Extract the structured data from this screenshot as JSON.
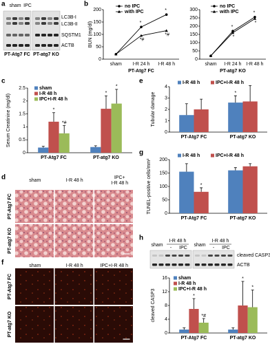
{
  "chart_data": [
    {
      "type": "line",
      "label": "b",
      "ylabel": "BUN (mg/dl)",
      "xlabel": "PT-Atg7 FC",
      "categories": [
        "sham",
        "I-R 24 h",
        "I-R 48 h"
      ],
      "series": [
        {
          "name": "no IPC",
          "color": "#000000",
          "values": [
            20,
            130,
            180
          ],
          "notes": [
            null,
            "*",
            "*"
          ]
        },
        {
          "name": "with IPC",
          "color": "#000000",
          "values": [
            20,
            95,
            115
          ],
          "notes": [
            null,
            "*#",
            "*#"
          ]
        }
      ],
      "ylim": [
        0,
        200
      ],
      "yticks": [
        0,
        50,
        100,
        150,
        200
      ]
    },
    {
      "type": "line",
      "xlabel": "PT-atg7 KO",
      "categories": [
        "sham",
        "I-R 24 h",
        "I-R 48 h"
      ],
      "series": [
        {
          "name": "no IPC",
          "color": "#000000",
          "values": [
            20,
            170,
            255
          ],
          "notes": [
            null,
            "*",
            "*"
          ]
        },
        {
          "name": "with IPC",
          "color": "#000000",
          "values": [
            20,
            160,
            245
          ],
          "notes": [
            null,
            "*",
            "*"
          ]
        }
      ],
      "ylim": [
        0,
        300
      ],
      "yticks": [
        0,
        50,
        100,
        150,
        200,
        250,
        300
      ]
    },
    {
      "type": "bar",
      "label": "c",
      "ylabel": "Serum Creatinine (mg/dl)",
      "categories": [
        "PT-Atg7 FC",
        "PT-atg7 KO"
      ],
      "series": [
        {
          "name": "sham",
          "color": "#4f81bd",
          "values": [
            0.2,
            0.22
          ],
          "errors": [
            0.05,
            0.05
          ],
          "notes": [
            null,
            null
          ]
        },
        {
          "name": "I-R 48 h",
          "color": "#c0504d",
          "values": [
            1.2,
            1.7
          ],
          "errors": [
            0.35,
            0.5
          ],
          "notes": [
            "*",
            "*"
          ]
        },
        {
          "name": "IPC+I-R 48 h",
          "color": "#9bbb59",
          "values": [
            0.75,
            1.9
          ],
          "errors": [
            0.3,
            0.55
          ],
          "notes": [
            "*#",
            "*"
          ]
        }
      ],
      "ylim": [
        0,
        2.5
      ],
      "yticks": [
        0,
        0.5,
        1,
        1.5,
        2,
        2.5
      ]
    },
    {
      "type": "bar",
      "label": "e",
      "ylabel": "Tubular damage",
      "categories": [
        "PT-Atg7 FC",
        "PT-atg7 KO"
      ],
      "series": [
        {
          "name": "I-R 48 h",
          "color": "#4f81bd",
          "values": [
            1.5,
            2.6
          ],
          "errors": [
            1.0,
            0.6
          ],
          "notes": [
            null,
            "*"
          ]
        },
        {
          "name": "IPC+I-R 48 h",
          "color": "#c0504d",
          "values": [
            2.0,
            2.7
          ],
          "errors": [
            0.9,
            1.4
          ],
          "notes": [
            null,
            null
          ]
        }
      ],
      "ylim": [
        0,
        4
      ],
      "yticks": [
        0,
        1,
        2,
        3,
        4
      ]
    },
    {
      "type": "bar",
      "label": "g",
      "ylabel": "TUNEL-positive cells/mm²",
      "categories": [
        "PT-Atg7 FC",
        "PT-atg7 KO"
      ],
      "series": [
        {
          "name": "I-R 48 h",
          "color": "#4f81bd",
          "values": [
            155,
            160
          ],
          "errors": [
            30,
            10
          ],
          "notes": [
            null,
            null
          ]
        },
        {
          "name": "IPC+I-R 48 h",
          "color": "#c0504d",
          "values": [
            80,
            175
          ],
          "errors": [
            15,
            10
          ],
          "notes": [
            "*",
            null
          ]
        }
      ],
      "ylim": [
        0,
        200
      ],
      "yticks": [
        0,
        50,
        100,
        150,
        200
      ]
    },
    {
      "type": "bar",
      "ylabel": "cleaved CASP3",
      "categories": [
        "PT-Atg7 FC",
        "PT-atg7 KO"
      ],
      "series": [
        {
          "name": "sham",
          "color": "#4f81bd",
          "values": [
            1,
            1
          ],
          "errors": [
            0.5,
            0.5
          ],
          "notes": [
            null,
            null
          ]
        },
        {
          "name": "I-R 48 h",
          "color": "#c0504d",
          "values": [
            7,
            8
          ],
          "errors": [
            3,
            7
          ],
          "notes": [
            "*",
            "*"
          ]
        },
        {
          "name": "IPC+I-R 48 h",
          "color": "#9bbb59",
          "values": [
            3,
            7.5
          ],
          "errors": [
            1.2,
            5
          ],
          "notes": [
            "*#",
            "*"
          ]
        }
      ],
      "ylim": [
        0,
        16
      ],
      "yticks": [
        0,
        4,
        8,
        12,
        16
      ]
    }
  ],
  "blot_a": {
    "label": "a",
    "columns": [
      "sham",
      "IPC"
    ],
    "bands": [
      "LC3B-I",
      "LC3B-II",
      "SQSTM1",
      "ACTB"
    ],
    "groups": [
      "PT-Atg7 FC",
      "PT-atg7 KO"
    ]
  },
  "blot_h": {
    "label": "h",
    "columns": [
      "sham",
      "I-R 48 h",
      "-",
      "IPC"
    ],
    "bands": [
      "cleaved CASP3",
      "ACTB"
    ]
  },
  "images_d": {
    "label": "d",
    "columns": [
      "sham",
      "I-R 48 h",
      [
        "IPC+",
        "I-R 48 h"
      ]
    ],
    "rows": [
      "PT-Atg7 FC",
      "PT-atg7 KO"
    ]
  },
  "images_f": {
    "label": "f",
    "columns": [
      "sham",
      "I-R 48 h",
      "IPC+I-R 48 h"
    ],
    "rows": [
      "PT-Atg7 FC",
      "PT-atg7 KO"
    ]
  }
}
